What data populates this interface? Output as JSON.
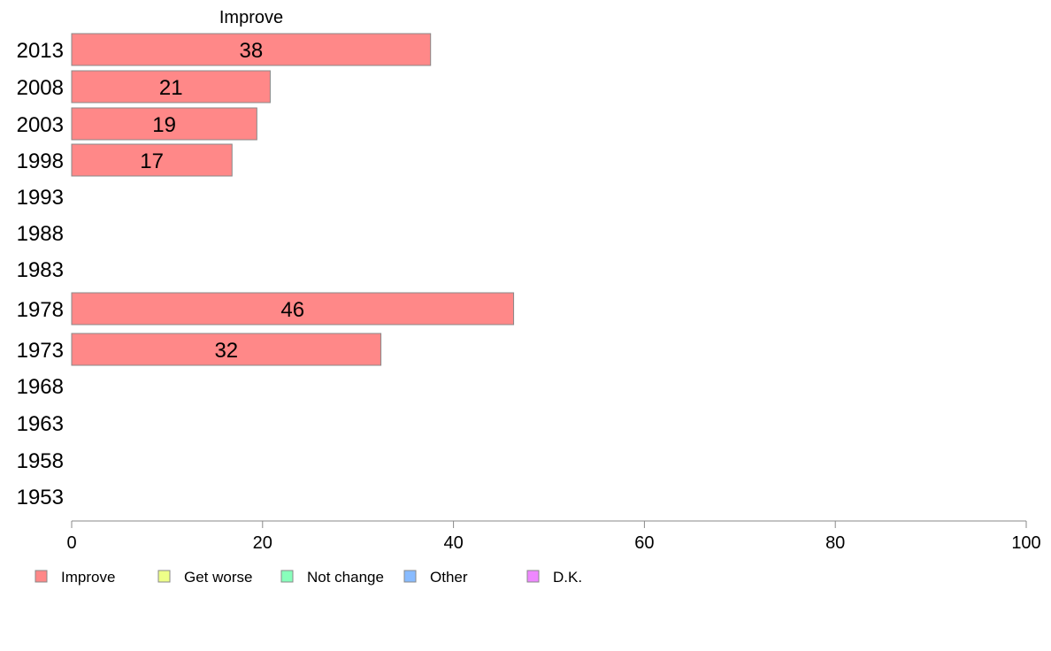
{
  "chart_data": {
    "type": "bar",
    "orientation": "horizontal",
    "title": "Improve",
    "categories": [
      "2013",
      "2008",
      "2003",
      "1998",
      "1993",
      "1988",
      "1983",
      "1978",
      "1973",
      "1968",
      "1963",
      "1958",
      "1953"
    ],
    "series": [
      {
        "name": "Improve",
        "color": "#ff8888",
        "values": [
          37.6,
          20.8,
          19.4,
          16.8,
          null,
          null,
          null,
          46.3,
          32.4,
          null,
          null,
          null,
          null
        ],
        "labels": [
          "38",
          "21",
          "19",
          "17",
          null,
          null,
          null,
          "46",
          "32",
          null,
          null,
          null,
          null
        ]
      }
    ],
    "xlim": [
      0,
      100
    ],
    "xticks": [
      "0",
      "20",
      "40",
      "60",
      "80",
      "100"
    ],
    "grid": false,
    "legend_position": "bottom",
    "legend": [
      {
        "label": "Improve",
        "color": "#ff8888"
      },
      {
        "label": "Get worse",
        "color": "#eeff88"
      },
      {
        "label": "Not change",
        "color": "#88ffbb"
      },
      {
        "label": "Other",
        "color": "#88bbff"
      },
      {
        "label": "D.K.",
        "color": "#ee88ff"
      }
    ]
  }
}
